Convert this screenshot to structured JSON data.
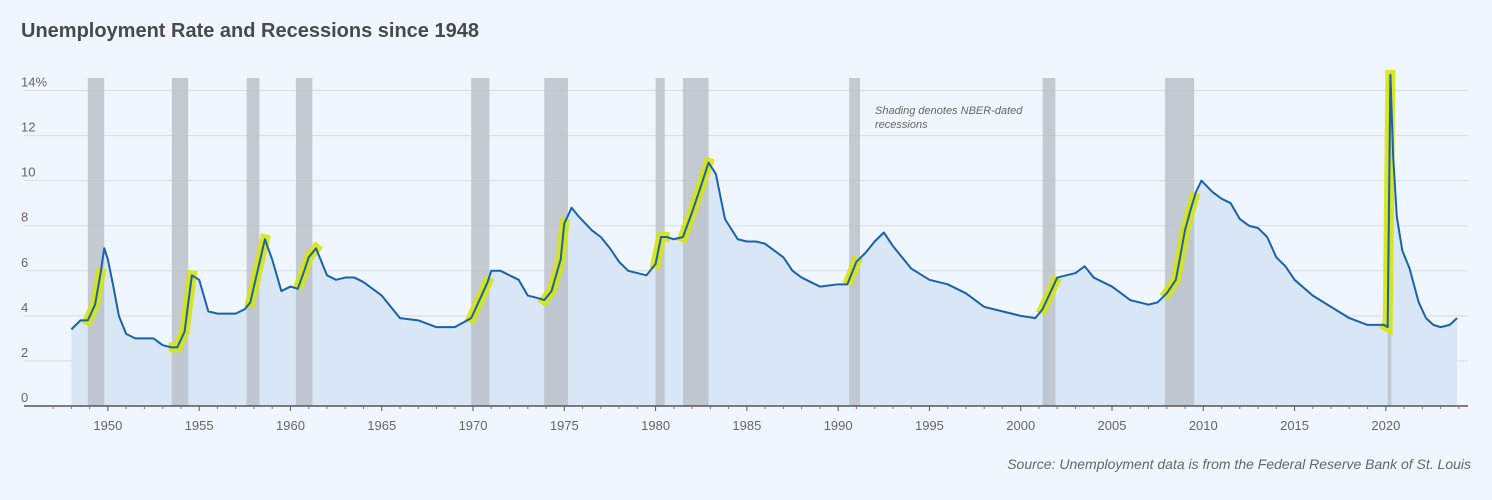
{
  "title": "Unemployment Rate and Recessions since 1948",
  "source": "Source: Unemployment data is from the Federal Reserve Bank of St. Louis",
  "note": "Shading denotes NBER-dated recessions",
  "colors": {
    "line": "#1a62ab",
    "area": "#d8e6f5",
    "recession": "#b9bfc7",
    "highlight": "#d7e40e",
    "grid": "#d9dde2",
    "axis": "#666666"
  },
  "chart_data": {
    "type": "area",
    "title": "Unemployment Rate and Recessions since 1948",
    "xlabel": "",
    "ylabel": "",
    "xlim": [
      1946.5,
      2024.5
    ],
    "ylim": [
      0,
      15
    ],
    "yticks": [
      {
        "value": 0,
        "label": "0"
      },
      {
        "value": 2,
        "label": "2"
      },
      {
        "value": 4,
        "label": "4"
      },
      {
        "value": 6,
        "label": "6"
      },
      {
        "value": 8,
        "label": "8"
      },
      {
        "value": 10,
        "label": "10"
      },
      {
        "value": 12,
        "label": "12"
      },
      {
        "value": 14,
        "label": "14%"
      }
    ],
    "xticks": [
      1950,
      1955,
      1960,
      1965,
      1970,
      1975,
      1980,
      1985,
      1990,
      1995,
      2000,
      2005,
      2010,
      2015,
      2020
    ],
    "grid": true,
    "series": [
      {
        "name": "",
        "x": [
          1948.0,
          1948.5,
          1948.9,
          1949.3,
          1949.6,
          1949.8,
          1950.0,
          1950.3,
          1950.6,
          1951.0,
          1951.5,
          1952.0,
          1952.5,
          1953.0,
          1953.5,
          1953.8,
          1954.2,
          1954.6,
          1955.0,
          1955.5,
          1956.0,
          1956.5,
          1957.0,
          1957.5,
          1957.8,
          1958.2,
          1958.6,
          1959.0,
          1959.5,
          1960.0,
          1960.4,
          1960.8,
          1961.0,
          1961.4,
          1962.0,
          1962.5,
          1963.0,
          1963.5,
          1964.0,
          1964.5,
          1965.0,
          1965.5,
          1966.0,
          1967.0,
          1968.0,
          1969.0,
          1969.9,
          1970.3,
          1970.8,
          1971.0,
          1971.5,
          1972.0,
          1972.5,
          1973.0,
          1973.5,
          1973.9,
          1974.3,
          1974.8,
          1975.0,
          1975.4,
          1975.8,
          1976.5,
          1977.0,
          1977.5,
          1978.0,
          1978.5,
          1979.0,
          1979.5,
          1980.0,
          1980.3,
          1980.6,
          1981.0,
          1981.5,
          1982.0,
          1982.5,
          1982.9,
          1983.3,
          1983.8,
          1984.5,
          1985.0,
          1985.5,
          1986.0,
          1986.5,
          1987.0,
          1987.5,
          1988.0,
          1989.0,
          1990.0,
          1990.5,
          1991.0,
          1991.5,
          1992.0,
          1992.5,
          1993.0,
          1994.0,
          1995.0,
          1996.0,
          1997.0,
          1998.0,
          1999.0,
          2000.0,
          2000.8,
          2001.2,
          2001.6,
          2002.0,
          2002.5,
          2003.0,
          2003.5,
          2004.0,
          2005.0,
          2006.0,
          2007.0,
          2007.5,
          2008.0,
          2008.5,
          2009.0,
          2009.3,
          2009.6,
          2009.9,
          2010.5,
          2011.0,
          2011.5,
          2012.0,
          2012.5,
          2013.0,
          2013.5,
          2014.0,
          2014.5,
          2015.0,
          2016.0,
          2017.0,
          2018.0,
          2019.0,
          2019.9,
          2020.1,
          2020.25,
          2020.4,
          2020.6,
          2020.9,
          2021.3,
          2021.8,
          2022.2,
          2022.6,
          2023.0,
          2023.5,
          2023.9
        ],
        "values": [
          3.4,
          3.8,
          3.8,
          4.5,
          5.9,
          7.0,
          6.5,
          5.3,
          4.0,
          3.2,
          3.0,
          3.0,
          3.0,
          2.7,
          2.6,
          2.6,
          3.3,
          5.8,
          5.6,
          4.2,
          4.1,
          4.1,
          4.1,
          4.3,
          4.6,
          6.0,
          7.4,
          6.5,
          5.1,
          5.3,
          5.2,
          6.1,
          6.6,
          7.0,
          5.8,
          5.6,
          5.7,
          5.7,
          5.5,
          5.2,
          4.9,
          4.4,
          3.9,
          3.8,
          3.5,
          3.5,
          3.9,
          4.6,
          5.5,
          6.0,
          6.0,
          5.8,
          5.6,
          4.9,
          4.8,
          4.7,
          5.1,
          6.5,
          8.1,
          8.8,
          8.4,
          7.8,
          7.5,
          7.0,
          6.4,
          6.0,
          5.9,
          5.8,
          6.3,
          7.5,
          7.5,
          7.4,
          7.5,
          8.6,
          9.8,
          10.8,
          10.3,
          8.3,
          7.4,
          7.3,
          7.3,
          7.2,
          6.9,
          6.6,
          6.0,
          5.7,
          5.3,
          5.4,
          5.4,
          6.4,
          6.8,
          7.3,
          7.7,
          7.1,
          6.1,
          5.6,
          5.4,
          5.0,
          4.4,
          4.2,
          4.0,
          3.9,
          4.3,
          5.0,
          5.7,
          5.8,
          5.9,
          6.2,
          5.7,
          5.3,
          4.7,
          4.5,
          4.6,
          5.0,
          5.6,
          7.8,
          8.7,
          9.5,
          10.0,
          9.5,
          9.2,
          9.0,
          8.3,
          8.0,
          7.9,
          7.5,
          6.6,
          6.2,
          5.6,
          4.9,
          4.4,
          3.9,
          3.6,
          3.6,
          3.5,
          14.7,
          11.1,
          8.4,
          6.9,
          6.1,
          4.6,
          3.9,
          3.6,
          3.5,
          3.6,
          3.9
        ]
      }
    ],
    "recessions": [
      [
        1948.9,
        1949.8
      ],
      [
        1953.5,
        1954.4
      ],
      [
        1957.6,
        1958.3
      ],
      [
        1960.3,
        1961.2
      ],
      [
        1969.9,
        1970.9
      ],
      [
        1973.9,
        1975.2
      ],
      [
        1980.0,
        1980.5
      ],
      [
        1981.5,
        1982.9
      ],
      [
        1990.6,
        1991.2
      ],
      [
        2001.2,
        2001.9
      ],
      [
        2007.9,
        2009.5
      ],
      [
        2020.1,
        2020.3
      ]
    ],
    "highlights": [
      [
        1948.9,
        1949.6
      ],
      [
        1953.6,
        1954.6
      ],
      [
        1957.8,
        1958.6
      ],
      [
        1960.5,
        1961.4
      ],
      [
        1969.9,
        1970.8
      ],
      [
        1973.9,
        1975.0
      ],
      [
        1980.0,
        1980.5
      ],
      [
        1981.5,
        1982.9
      ],
      [
        1990.6,
        1991.0
      ],
      [
        2001.2,
        2001.9
      ],
      [
        2008.0,
        2009.5
      ],
      [
        2020.0,
        2020.25
      ]
    ]
  }
}
